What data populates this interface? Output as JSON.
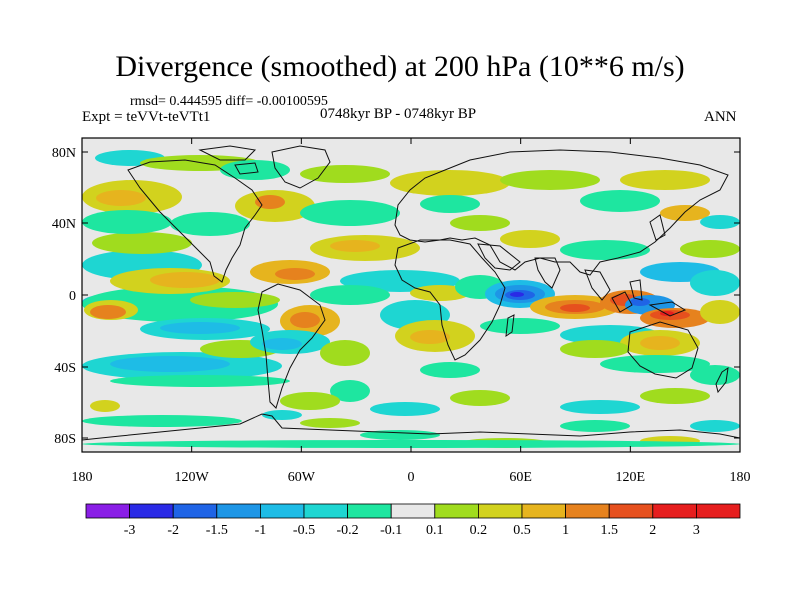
{
  "title": "Divergence (smoothed) at 200 hPa (10**6 m/s)",
  "stats": "rmsd= 0.444595 diff= -0.00100595",
  "experiment": "Expt = teVVt-teVTt1",
  "period": "0748kyr BP - 0748kyr BP",
  "season": "ANN",
  "lat_ticks": [
    "80N",
    "40N",
    "0",
    "40S",
    "80S"
  ],
  "lon_ticks": [
    "180",
    "120W",
    "60W",
    "0",
    "60E",
    "120E",
    "180"
  ],
  "colorbar": {
    "labels": [
      "-3",
      "-2",
      "-1.5",
      "-1",
      "-0.5",
      "-0.2",
      "-0.1",
      "0.1",
      "0.2",
      "0.5",
      "1",
      "1.5",
      "2",
      "3"
    ],
    "colors": [
      "#8a1ee6",
      "#2a2ae6",
      "#1f64e6",
      "#1e96e6",
      "#1ebce6",
      "#1ed6d2",
      "#1ee6a0",
      "#e8e8e8",
      "#a0dc1e",
      "#d2d21e",
      "#e6b41e",
      "#e6821e",
      "#e6501e",
      "#e61e1e"
    ]
  },
  "palette": {
    "background": "#e8e8e8",
    "neg1": "#1ee6a0",
    "neg2": "#1ed6d2",
    "neg3": "#1ebce6",
    "neg4": "#1e96e6",
    "neg5": "#1f64e6",
    "neg6": "#2a2ae6",
    "pos1": "#a0dc1e",
    "pos2": "#d2d21e",
    "pos3": "#e6b41e",
    "pos4": "#e6821e",
    "pos5": "#e6501e",
    "pos6": "#e61e1e"
  }
}
